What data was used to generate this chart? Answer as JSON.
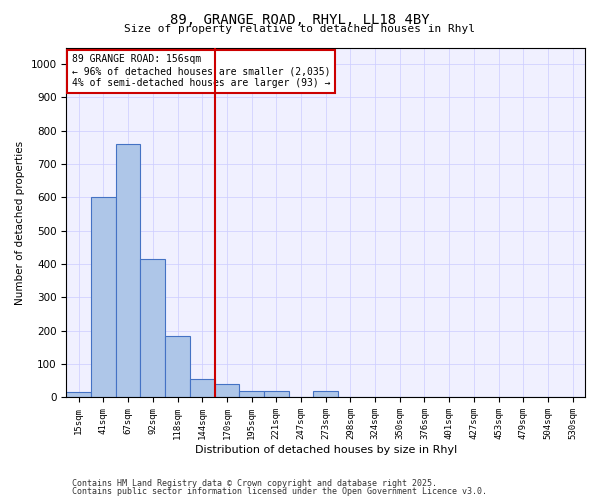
{
  "title_line1": "89, GRANGE ROAD, RHYL, LL18 4BY",
  "title_line2": "Size of property relative to detached houses in Rhyl",
  "xlabel": "Distribution of detached houses by size in Rhyl",
  "ylabel": "Number of detached properties",
  "categories": [
    "15sqm",
    "41sqm",
    "67sqm",
    "92sqm",
    "118sqm",
    "144sqm",
    "170sqm",
    "195sqm",
    "221sqm",
    "247sqm",
    "273sqm",
    "298sqm",
    "324sqm",
    "350sqm",
    "376sqm",
    "401sqm",
    "427sqm",
    "453sqm",
    "479sqm",
    "504sqm",
    "530sqm"
  ],
  "values": [
    15,
    600,
    760,
    415,
    185,
    55,
    40,
    20,
    20,
    0,
    20,
    0,
    0,
    0,
    0,
    0,
    0,
    0,
    0,
    0,
    0
  ],
  "bar_color": "#aec6e8",
  "bar_edge_color": "#4472c4",
  "annotation_text": "89 GRANGE ROAD: 156sqm\n← 96% of detached houses are smaller (2,035)\n4% of semi-detached houses are larger (93) →",
  "annotation_box_color": "#ffffff",
  "annotation_box_edge_color": "#cc0000",
  "red_line_color": "#cc0000",
  "ylim": [
    0,
    1050
  ],
  "yticks": [
    0,
    100,
    200,
    300,
    400,
    500,
    600,
    700,
    800,
    900,
    1000
  ],
  "grid_color": "#ccccff",
  "background_color": "#f0f0ff",
  "footer_line1": "Contains HM Land Registry data © Crown copyright and database right 2025.",
  "footer_line2": "Contains public sector information licensed under the Open Government Licence v3.0."
}
